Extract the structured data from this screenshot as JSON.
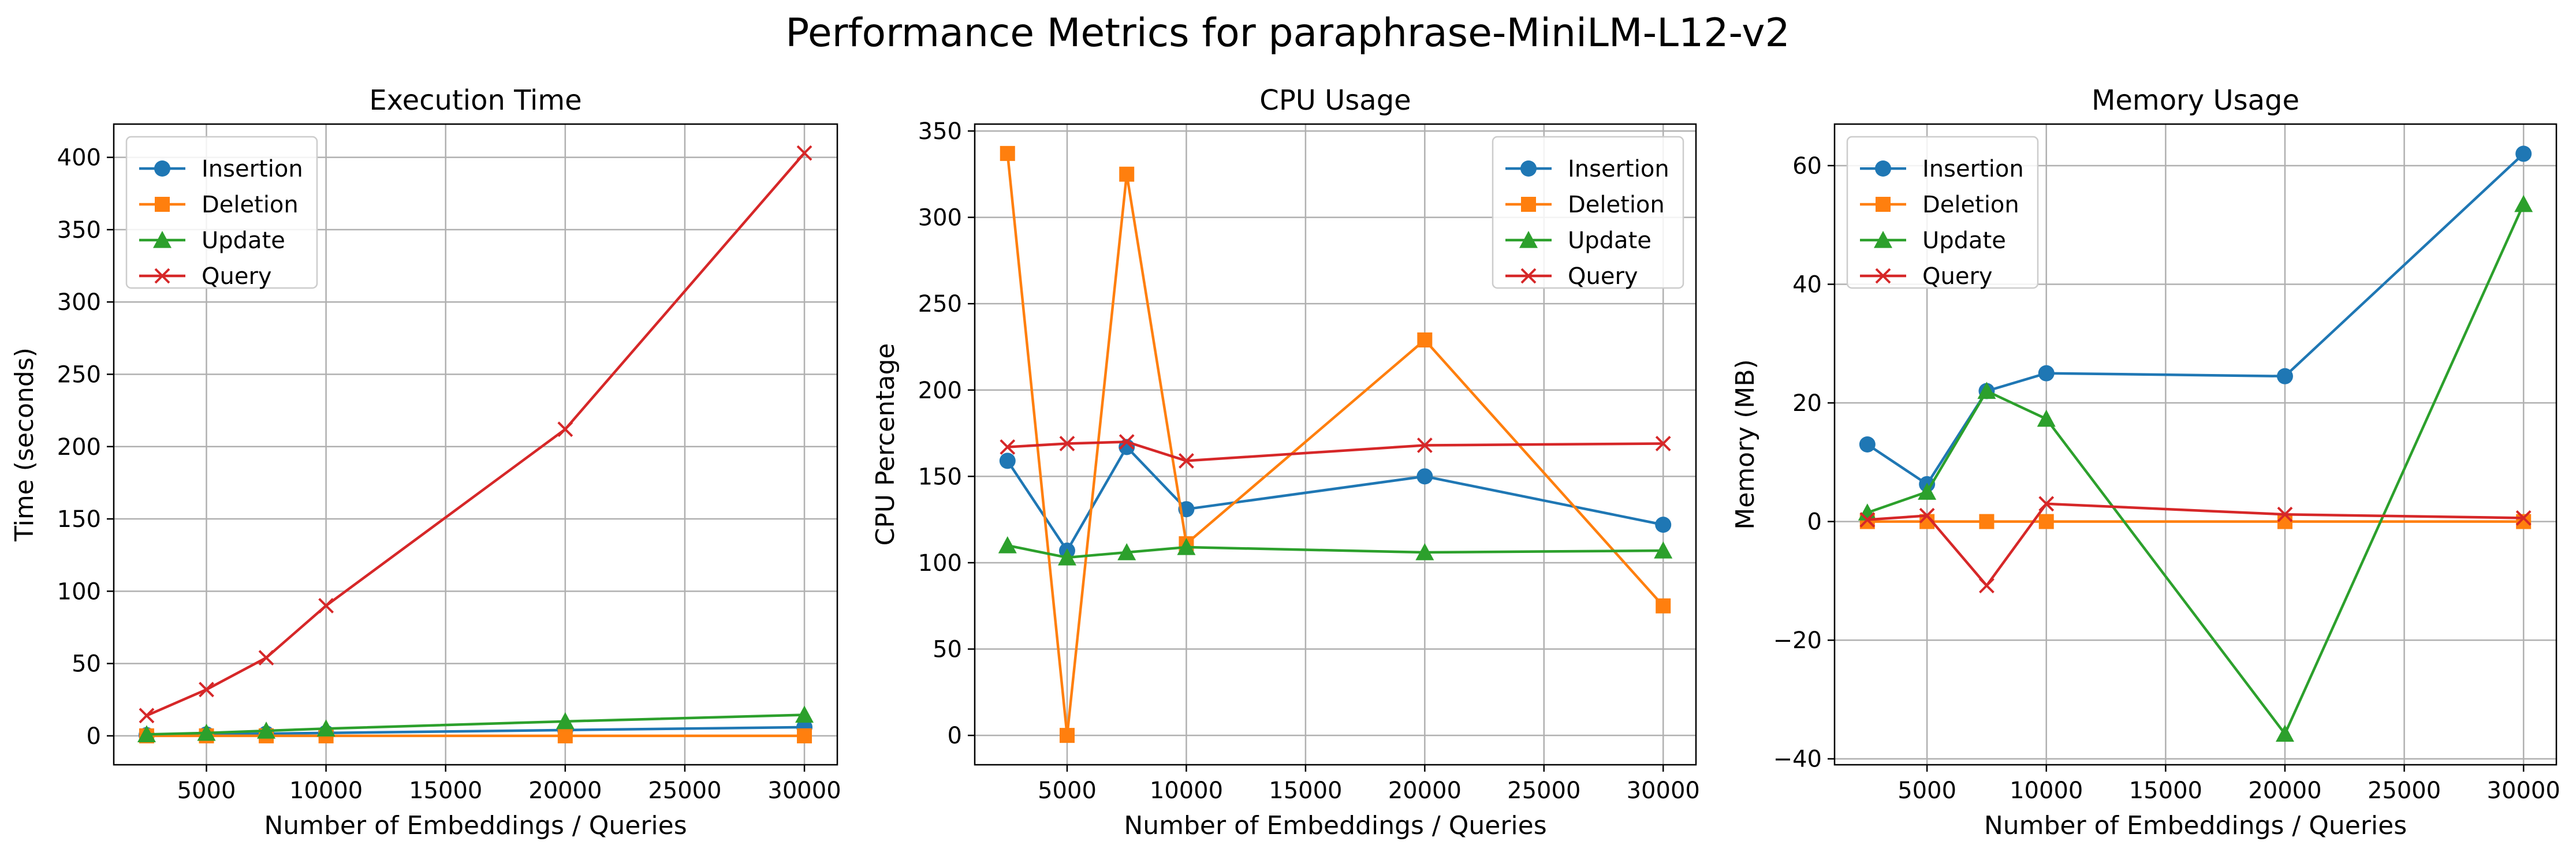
{
  "figure": {
    "title": "Performance Metrics for paraphrase-MiniLM-L12-v2"
  },
  "series_styles": [
    {
      "name": "Insertion",
      "color": "#1f77b4",
      "marker": "circle"
    },
    {
      "name": "Deletion",
      "color": "#ff7f0e",
      "marker": "square"
    },
    {
      "name": "Update",
      "color": "#2ca02c",
      "marker": "triangle"
    },
    {
      "name": "Query",
      "color": "#d62728",
      "marker": "x"
    }
  ],
  "chart_data": [
    {
      "type": "line",
      "title": "Execution Time",
      "xlabel": "Number of Embeddings / Queries",
      "ylabel": "Time (seconds)",
      "x": [
        2500,
        5000,
        7500,
        10000,
        20000,
        30000
      ],
      "xlim": [
        1125,
        31375
      ],
      "ylim": [
        -20,
        423
      ],
      "xticks": [
        5000,
        10000,
        15000,
        20000,
        25000,
        30000
      ],
      "yticks": [
        0,
        50,
        100,
        150,
        200,
        250,
        300,
        350,
        400
      ],
      "grid": true,
      "legend": "upper-left",
      "series": [
        {
          "name": "Insertion",
          "values": [
            0.5,
            1.0,
            1.5,
            2.0,
            4.0,
            6.0
          ]
        },
        {
          "name": "Deletion",
          "values": [
            0.0,
            0.0,
            0.0,
            0.0,
            0.0,
            0.0
          ]
        },
        {
          "name": "Update",
          "values": [
            1.0,
            2.0,
            3.5,
            5.0,
            10.0,
            14.5
          ]
        },
        {
          "name": "Query",
          "values": [
            14,
            32,
            54,
            90,
            212,
            403
          ]
        }
      ]
    },
    {
      "type": "line",
      "title": "CPU Usage",
      "xlabel": "Number of Embeddings / Queries",
      "ylabel": "CPU Percentage",
      "x": [
        2500,
        5000,
        7500,
        10000,
        20000,
        30000
      ],
      "xlim": [
        1125,
        31375
      ],
      "ylim": [
        -17,
        354
      ],
      "xticks": [
        5000,
        10000,
        15000,
        20000,
        25000,
        30000
      ],
      "yticks": [
        0,
        50,
        100,
        150,
        200,
        250,
        300,
        350
      ],
      "grid": true,
      "legend": "upper-right",
      "series": [
        {
          "name": "Insertion",
          "values": [
            159,
            107,
            167,
            131,
            150,
            122
          ]
        },
        {
          "name": "Deletion",
          "values": [
            337,
            0,
            325,
            111,
            229,
            75
          ]
        },
        {
          "name": "Update",
          "values": [
            110,
            103,
            106,
            109,
            106,
            107
          ]
        },
        {
          "name": "Query",
          "values": [
            167,
            169,
            170,
            159,
            168,
            169
          ]
        }
      ]
    },
    {
      "type": "line",
      "title": "Memory Usage",
      "xlabel": "Number of Embeddings / Queries",
      "ylabel": "Memory (MB)",
      "x": [
        2500,
        5000,
        7500,
        10000,
        20000,
        30000
      ],
      "xlim": [
        1125,
        31375
      ],
      "ylim": [
        -41,
        67
      ],
      "xticks": [
        5000,
        10000,
        15000,
        20000,
        25000,
        30000
      ],
      "yticks": [
        -40,
        -20,
        0,
        20,
        40,
        60
      ],
      "grid": true,
      "legend": "upper-left",
      "series": [
        {
          "name": "Insertion",
          "values": [
            13,
            6.3,
            22,
            25,
            24.5,
            62
          ]
        },
        {
          "name": "Deletion",
          "values": [
            0,
            0,
            0,
            0,
            0,
            0
          ]
        },
        {
          "name": "Update",
          "values": [
            1.5,
            5,
            22,
            17.3,
            -35.8,
            53.5
          ]
        },
        {
          "name": "Query",
          "values": [
            0.3,
            1,
            -10.8,
            3,
            1.2,
            0.6
          ]
        }
      ]
    }
  ]
}
